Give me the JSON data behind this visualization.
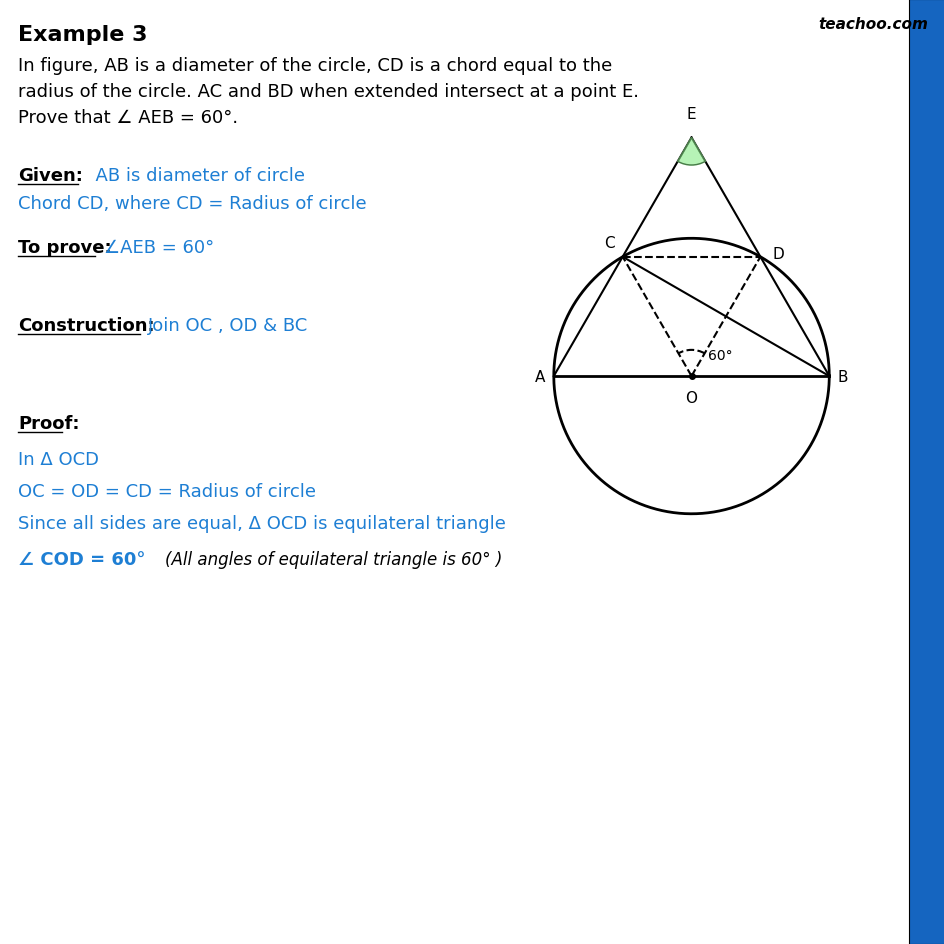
{
  "title": "Example 3",
  "watermark": "teachoo.com",
  "blue_color": "#1e7fd4",
  "black_color": "#000000",
  "bg_color": "#ffffff",
  "sidebar_color": "#1565C0",
  "problem_text_line1": "In figure, AB is a diameter of the circle, CD is a chord equal to the",
  "problem_text_line2": "radius of the circle. AC and BD when extended intersect at a point E.",
  "problem_text_line3": "Prove that ∠ AEB = 60°.",
  "given_label": "Given:",
  "given_text": "  AB is diameter of circle",
  "given_text2": "Chord CD, where CD = Radius of circle",
  "toprove_text": "∠AEB = 60°",
  "construction_text": "Join OC , OD & BC",
  "proof_line1": "In Δ OCD",
  "proof_line2": "OC = OD = CD = Radius of circle",
  "proof_line3": "Since all sides are equal, Δ OCD is equilateral triangle",
  "proof_line4": "∠ COD = 60°",
  "proof_line4b": "        (All angles of equilateral triangle is 60° )",
  "circle_r": 1.0
}
